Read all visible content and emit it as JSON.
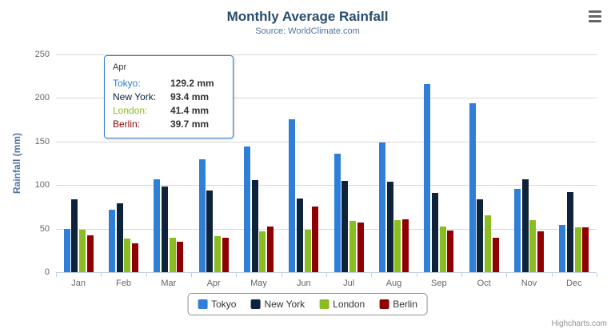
{
  "title": "Monthly Average Rainfall",
  "subtitle": "Source: WorldClimate.com",
  "credits": "Highcharts.com",
  "tooltip": {
    "category": "Apr",
    "border_color": "#2f7ed8",
    "rows": [
      {
        "series": "Tokyo",
        "value": "129.2 mm"
      },
      {
        "series": "New York",
        "value": "93.4 mm"
      },
      {
        "series": "London",
        "value": "41.4 mm"
      },
      {
        "series": "Berlin",
        "value": "39.7 mm"
      }
    ]
  },
  "chart_data": {
    "type": "bar",
    "title": "Monthly Average Rainfall",
    "subtitle": "Source: WorldClimate.com",
    "xlabel": "",
    "ylabel": "Rainfall (mm)",
    "ylim": [
      0,
      250
    ],
    "y_ticks": [
      0,
      50,
      100,
      150,
      200,
      250
    ],
    "grid": true,
    "legend_position": "bottom",
    "categories": [
      "Jan",
      "Feb",
      "Mar",
      "Apr",
      "May",
      "Jun",
      "Jul",
      "Aug",
      "Sep",
      "Oct",
      "Nov",
      "Dec"
    ],
    "series": [
      {
        "name": "Tokyo",
        "color": "#2f7ed8",
        "values": [
          49.9,
          71.5,
          106.4,
          129.2,
          144.0,
          176.0,
          135.6,
          148.5,
          216.4,
          194.1,
          95.6,
          54.4
        ]
      },
      {
        "name": "New York",
        "color": "#0d233a",
        "values": [
          83.6,
          78.8,
          98.5,
          93.4,
          106.0,
          84.5,
          105.0,
          104.3,
          91.2,
          83.5,
          106.6,
          92.3
        ]
      },
      {
        "name": "London",
        "color": "#8bbc21",
        "values": [
          48.9,
          38.8,
          39.3,
          41.4,
          47.0,
          48.3,
          59.0,
          59.6,
          52.4,
          65.2,
          59.3,
          51.2
        ]
      },
      {
        "name": "Berlin",
        "color": "#910000",
        "values": [
          42.4,
          33.2,
          34.5,
          39.7,
          52.6,
          75.5,
          57.4,
          60.4,
          47.6,
          39.1,
          46.8,
          51.1
        ]
      }
    ]
  }
}
